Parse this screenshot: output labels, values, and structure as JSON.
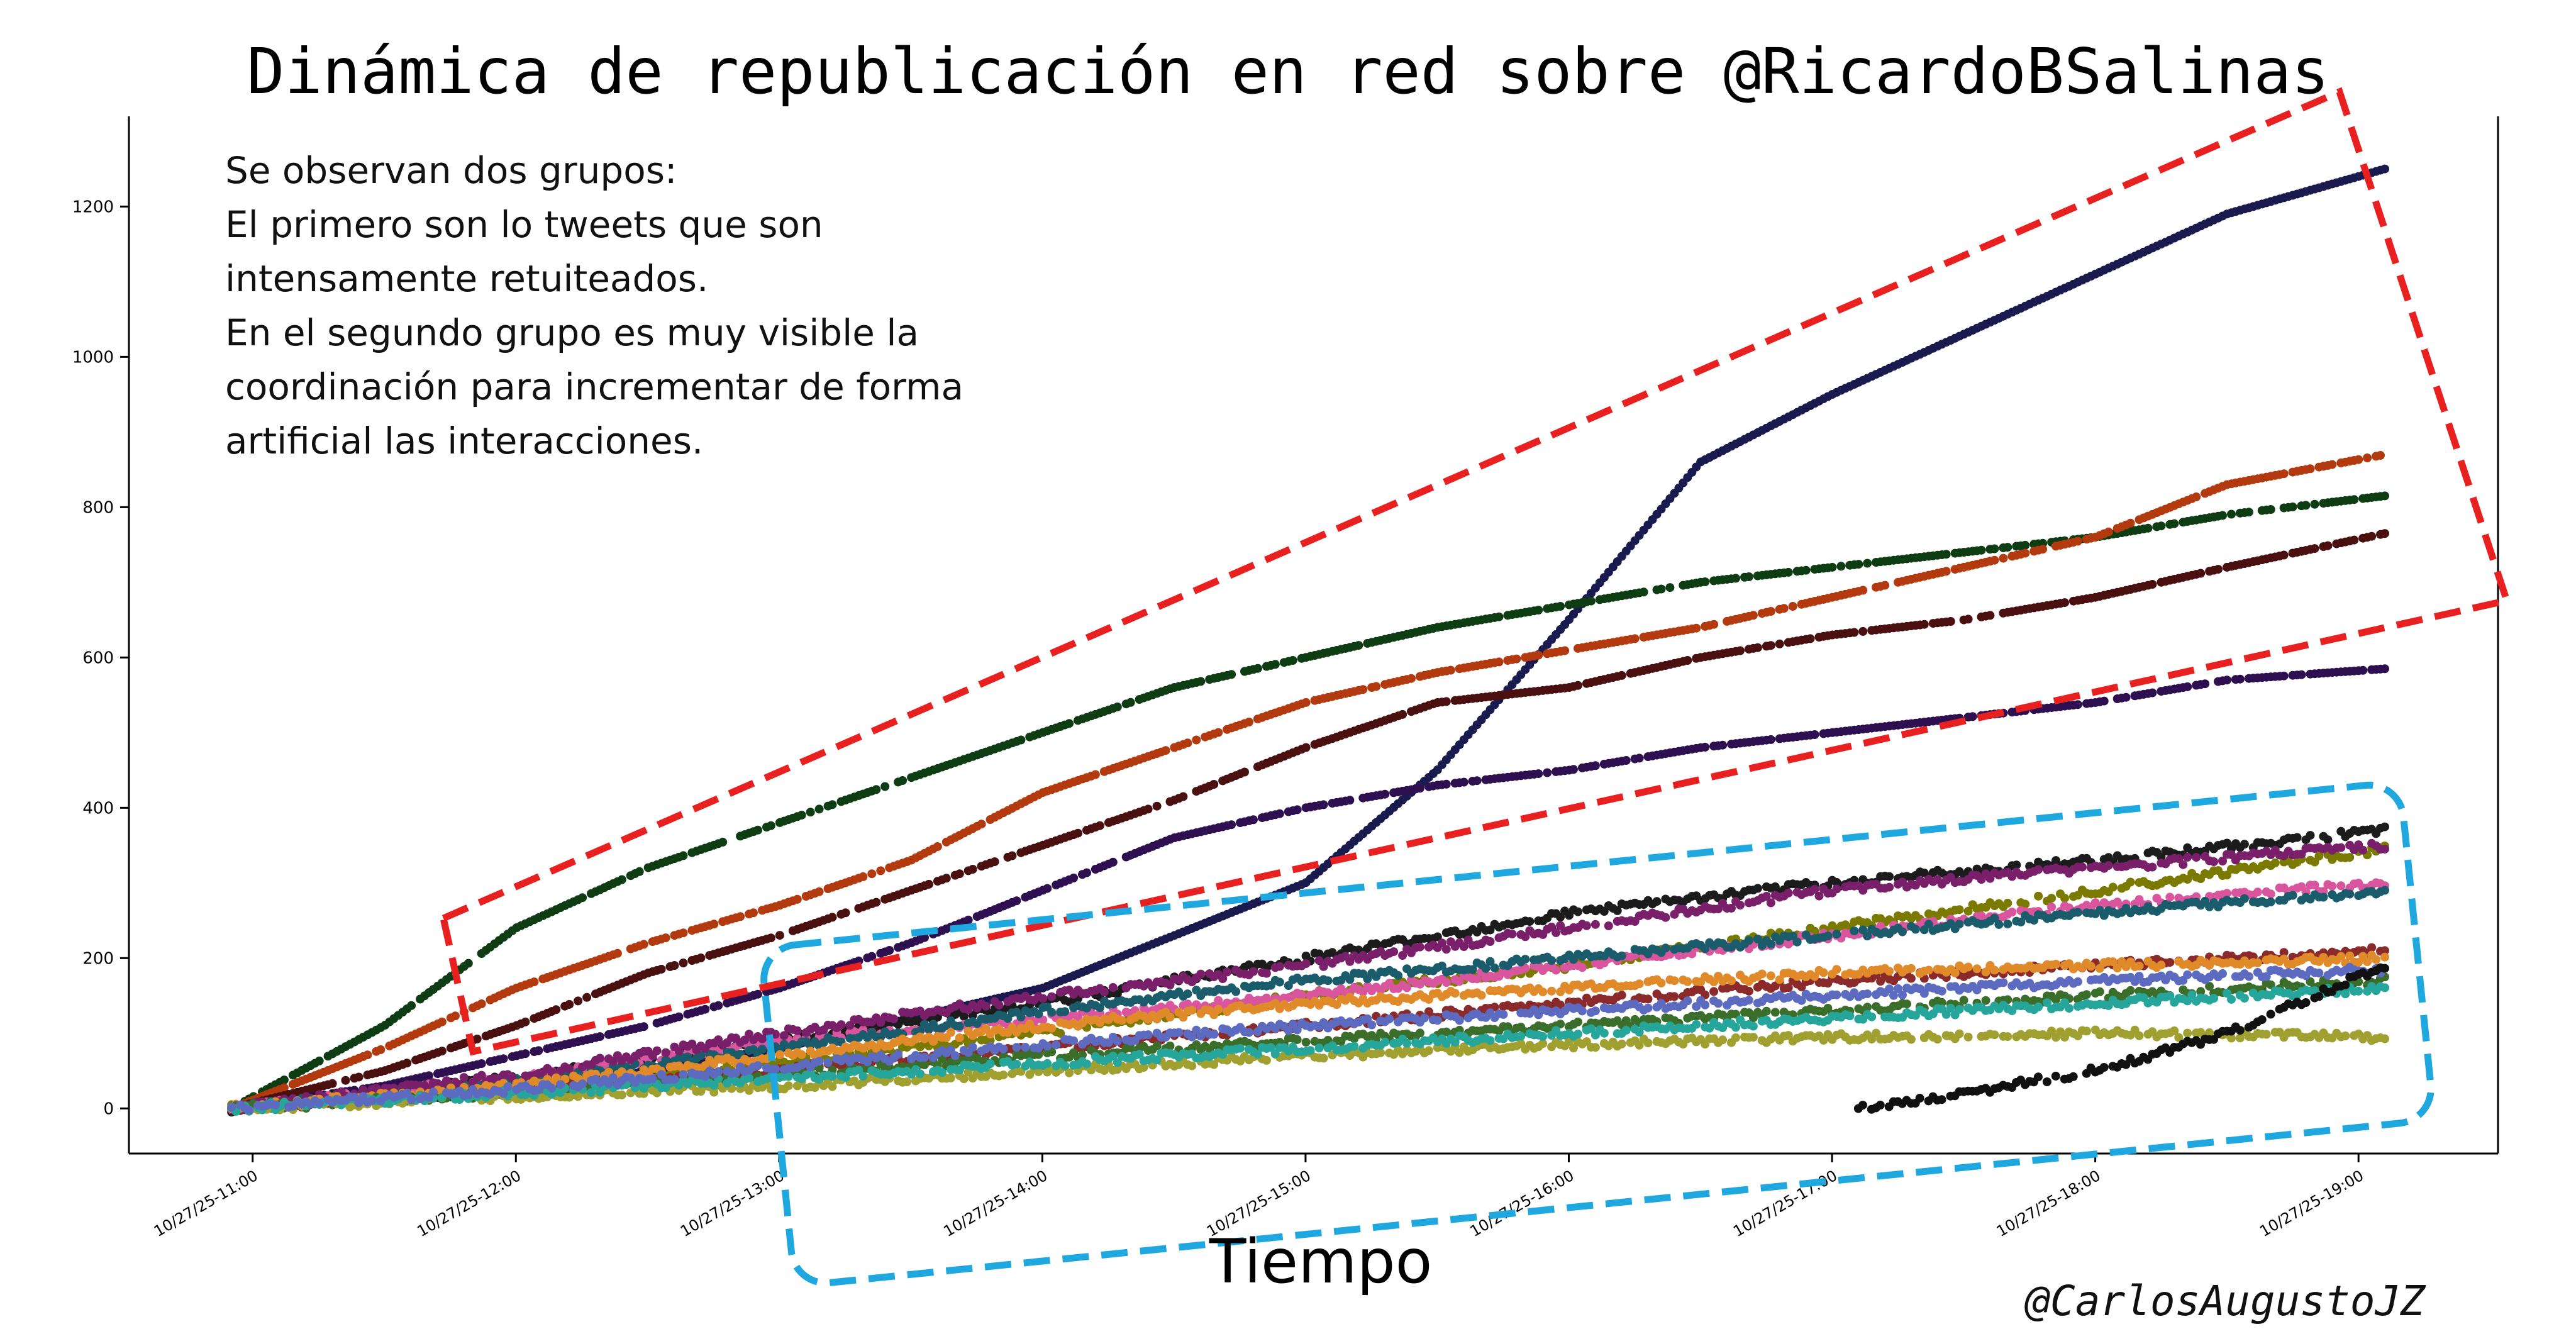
{
  "chart_data": {
    "type": "scatter",
    "title": "Dinámica de republicación en red sobre @RicardoBSalinas",
    "xlabel": "Tiempo",
    "ylabel": "",
    "x_ticks": [
      "10/27/25-11:00",
      "10/27/25-12:00",
      "10/27/25-13:00",
      "10/27/25-14:00",
      "10/27/25-15:00",
      "10/27/25-16:00",
      "10/27/25-17:00",
      "10/27/25-18:00",
      "10/27/25-19:00"
    ],
    "y_ticks": [
      0,
      200,
      400,
      600,
      800,
      1000,
      1200
    ],
    "xlim_hours": [
      10.53,
      19.53
    ],
    "ylim": [
      -60,
      1320
    ],
    "grid": false,
    "annotation": [
      "Se observan dos grupos:",
      "El primero son lo tweets que son",
      "intensamente retuiteados.",
      "En el segundo grupo es muy visible la",
      "coordinación para incrementar de forma",
      "artificial las interacciones."
    ],
    "credit": "@CarlosAugustoJZ",
    "group_box_colors": {
      "group1": "#e8201f",
      "group2": "#1fa8e0"
    },
    "series": [
      {
        "color": "#1a1a4e",
        "x": [
          10.92,
          12.0,
          13.0,
          14.0,
          14.5,
          15.0,
          15.5,
          16.0,
          16.5,
          17.0,
          17.5,
          18.0,
          18.5,
          19.1
        ],
        "y": [
          0,
          20,
          80,
          160,
          230,
          300,
          450,
          650,
          860,
          950,
          1030,
          1110,
          1190,
          1250
        ]
      },
      {
        "color": "#0e3d14",
        "x": [
          10.92,
          11.5,
          12.0,
          12.5,
          13.0,
          13.5,
          14.0,
          14.5,
          15.0,
          15.5,
          16.0,
          16.5,
          17.0,
          17.5,
          18.0,
          18.5,
          19.1
        ],
        "y": [
          0,
          110,
          240,
          320,
          380,
          440,
          500,
          560,
          600,
          640,
          670,
          700,
          720,
          740,
          760,
          790,
          815
        ]
      },
      {
        "color": "#b23a0e",
        "x": [
          10.92,
          11.5,
          12.0,
          12.5,
          13.0,
          13.5,
          14.0,
          14.5,
          15.0,
          15.5,
          16.0,
          16.5,
          17.0,
          17.5,
          18.0,
          18.5,
          19.1
        ],
        "y": [
          0,
          80,
          160,
          220,
          270,
          330,
          420,
          480,
          540,
          580,
          610,
          640,
          680,
          720,
          760,
          830,
          870
        ]
      },
      {
        "color": "#4a0f0f",
        "x": [
          10.92,
          11.5,
          12.0,
          12.5,
          13.0,
          13.5,
          14.0,
          14.5,
          15.0,
          15.5,
          16.0,
          16.5,
          17.0,
          17.5,
          18.0,
          18.5,
          19.1
        ],
        "y": [
          0,
          50,
          110,
          180,
          230,
          290,
          350,
          410,
          480,
          540,
          560,
          600,
          630,
          650,
          680,
          720,
          765
        ]
      },
      {
        "color": "#2e0f4f",
        "x": [
          10.92,
          11.5,
          12.0,
          12.5,
          13.0,
          13.5,
          14.0,
          14.5,
          15.0,
          15.5,
          16.0,
          16.5,
          17.0,
          17.5,
          18.0,
          18.5,
          19.1
        ],
        "y": [
          0,
          30,
          70,
          110,
          160,
          220,
          290,
          360,
          400,
          430,
          450,
          480,
          500,
          520,
          540,
          570,
          585
        ]
      },
      {
        "color": "#1c1c1c",
        "x": [
          10.92,
          12.0,
          13.0,
          14.0,
          15.0,
          16.0,
          17.0,
          18.0,
          19.1
        ],
        "y": [
          0,
          40,
          90,
          140,
          200,
          260,
          300,
          330,
          370
        ]
      },
      {
        "color": "#7a7a00",
        "x": [
          10.92,
          12.0,
          13.0,
          14.0,
          15.0,
          16.0,
          17.0,
          18.0,
          19.1
        ],
        "y": [
          0,
          30,
          60,
          100,
          150,
          190,
          240,
          290,
          345
        ]
      },
      {
        "color": "#d9569e",
        "x": [
          10.92,
          12.0,
          13.0,
          14.0,
          15.0,
          16.0,
          17.0,
          18.0,
          19.1
        ],
        "y": [
          0,
          40,
          90,
          120,
          150,
          190,
          230,
          270,
          300
        ]
      },
      {
        "color": "#1a5c6b",
        "x": [
          10.92,
          12.0,
          13.0,
          14.0,
          15.0,
          16.0,
          17.0,
          18.0,
          19.1
        ],
        "y": [
          0,
          35,
          80,
          130,
          170,
          200,
          230,
          260,
          290
        ]
      },
      {
        "color": "#7a1f6a",
        "x": [
          10.92,
          12.0,
          13.0,
          14.0,
          15.0,
          16.0,
          17.0,
          18.0,
          19.1
        ],
        "y": [
          0,
          45,
          100,
          150,
          190,
          240,
          290,
          320,
          350
        ]
      },
      {
        "color": "#8a2a2a",
        "x": [
          10.92,
          12.0,
          13.0,
          14.0,
          15.0,
          16.0,
          17.0,
          18.0,
          19.1
        ],
        "y": [
          0,
          25,
          50,
          80,
          110,
          140,
          170,
          190,
          210
        ]
      },
      {
        "color": "#e08a2a",
        "x": [
          10.92,
          12.0,
          13.0,
          14.0,
          15.0,
          16.0,
          17.0,
          18.0,
          19.1
        ],
        "y": [
          0,
          30,
          70,
          110,
          140,
          160,
          180,
          190,
          200
        ]
      },
      {
        "color": "#3a6e2a",
        "x": [
          10.92,
          12.0,
          13.0,
          14.0,
          15.0,
          16.0,
          17.0,
          18.0,
          19.1
        ],
        "y": [
          0,
          20,
          45,
          70,
          90,
          110,
          130,
          150,
          170
        ]
      },
      {
        "color": "#a0a030",
        "x": [
          10.92,
          12.0,
          13.0,
          14.0,
          15.0,
          16.0,
          17.0,
          18.0,
          19.1
        ],
        "y": [
          0,
          15,
          30,
          50,
          70,
          85,
          95,
          100,
          95
        ]
      },
      {
        "color": "#26a69a",
        "x": [
          10.92,
          12.0,
          13.0,
          14.0,
          15.0,
          16.0,
          17.0,
          18.0,
          19.1
        ],
        "y": [
          0,
          20,
          40,
          60,
          80,
          100,
          120,
          140,
          160
        ]
      },
      {
        "color": "#5c6bc0",
        "x": [
          10.92,
          12.0,
          13.0,
          14.0,
          15.0,
          16.0,
          17.0,
          18.0,
          19.1
        ],
        "y": [
          0,
          25,
          55,
          85,
          110,
          130,
          150,
          170,
          185
        ]
      },
      {
        "color": "#111111",
        "x": [
          17.1,
          17.5,
          18.0,
          18.5,
          19.1
        ],
        "y": [
          0,
          20,
          50,
          100,
          190
        ]
      }
    ]
  }
}
